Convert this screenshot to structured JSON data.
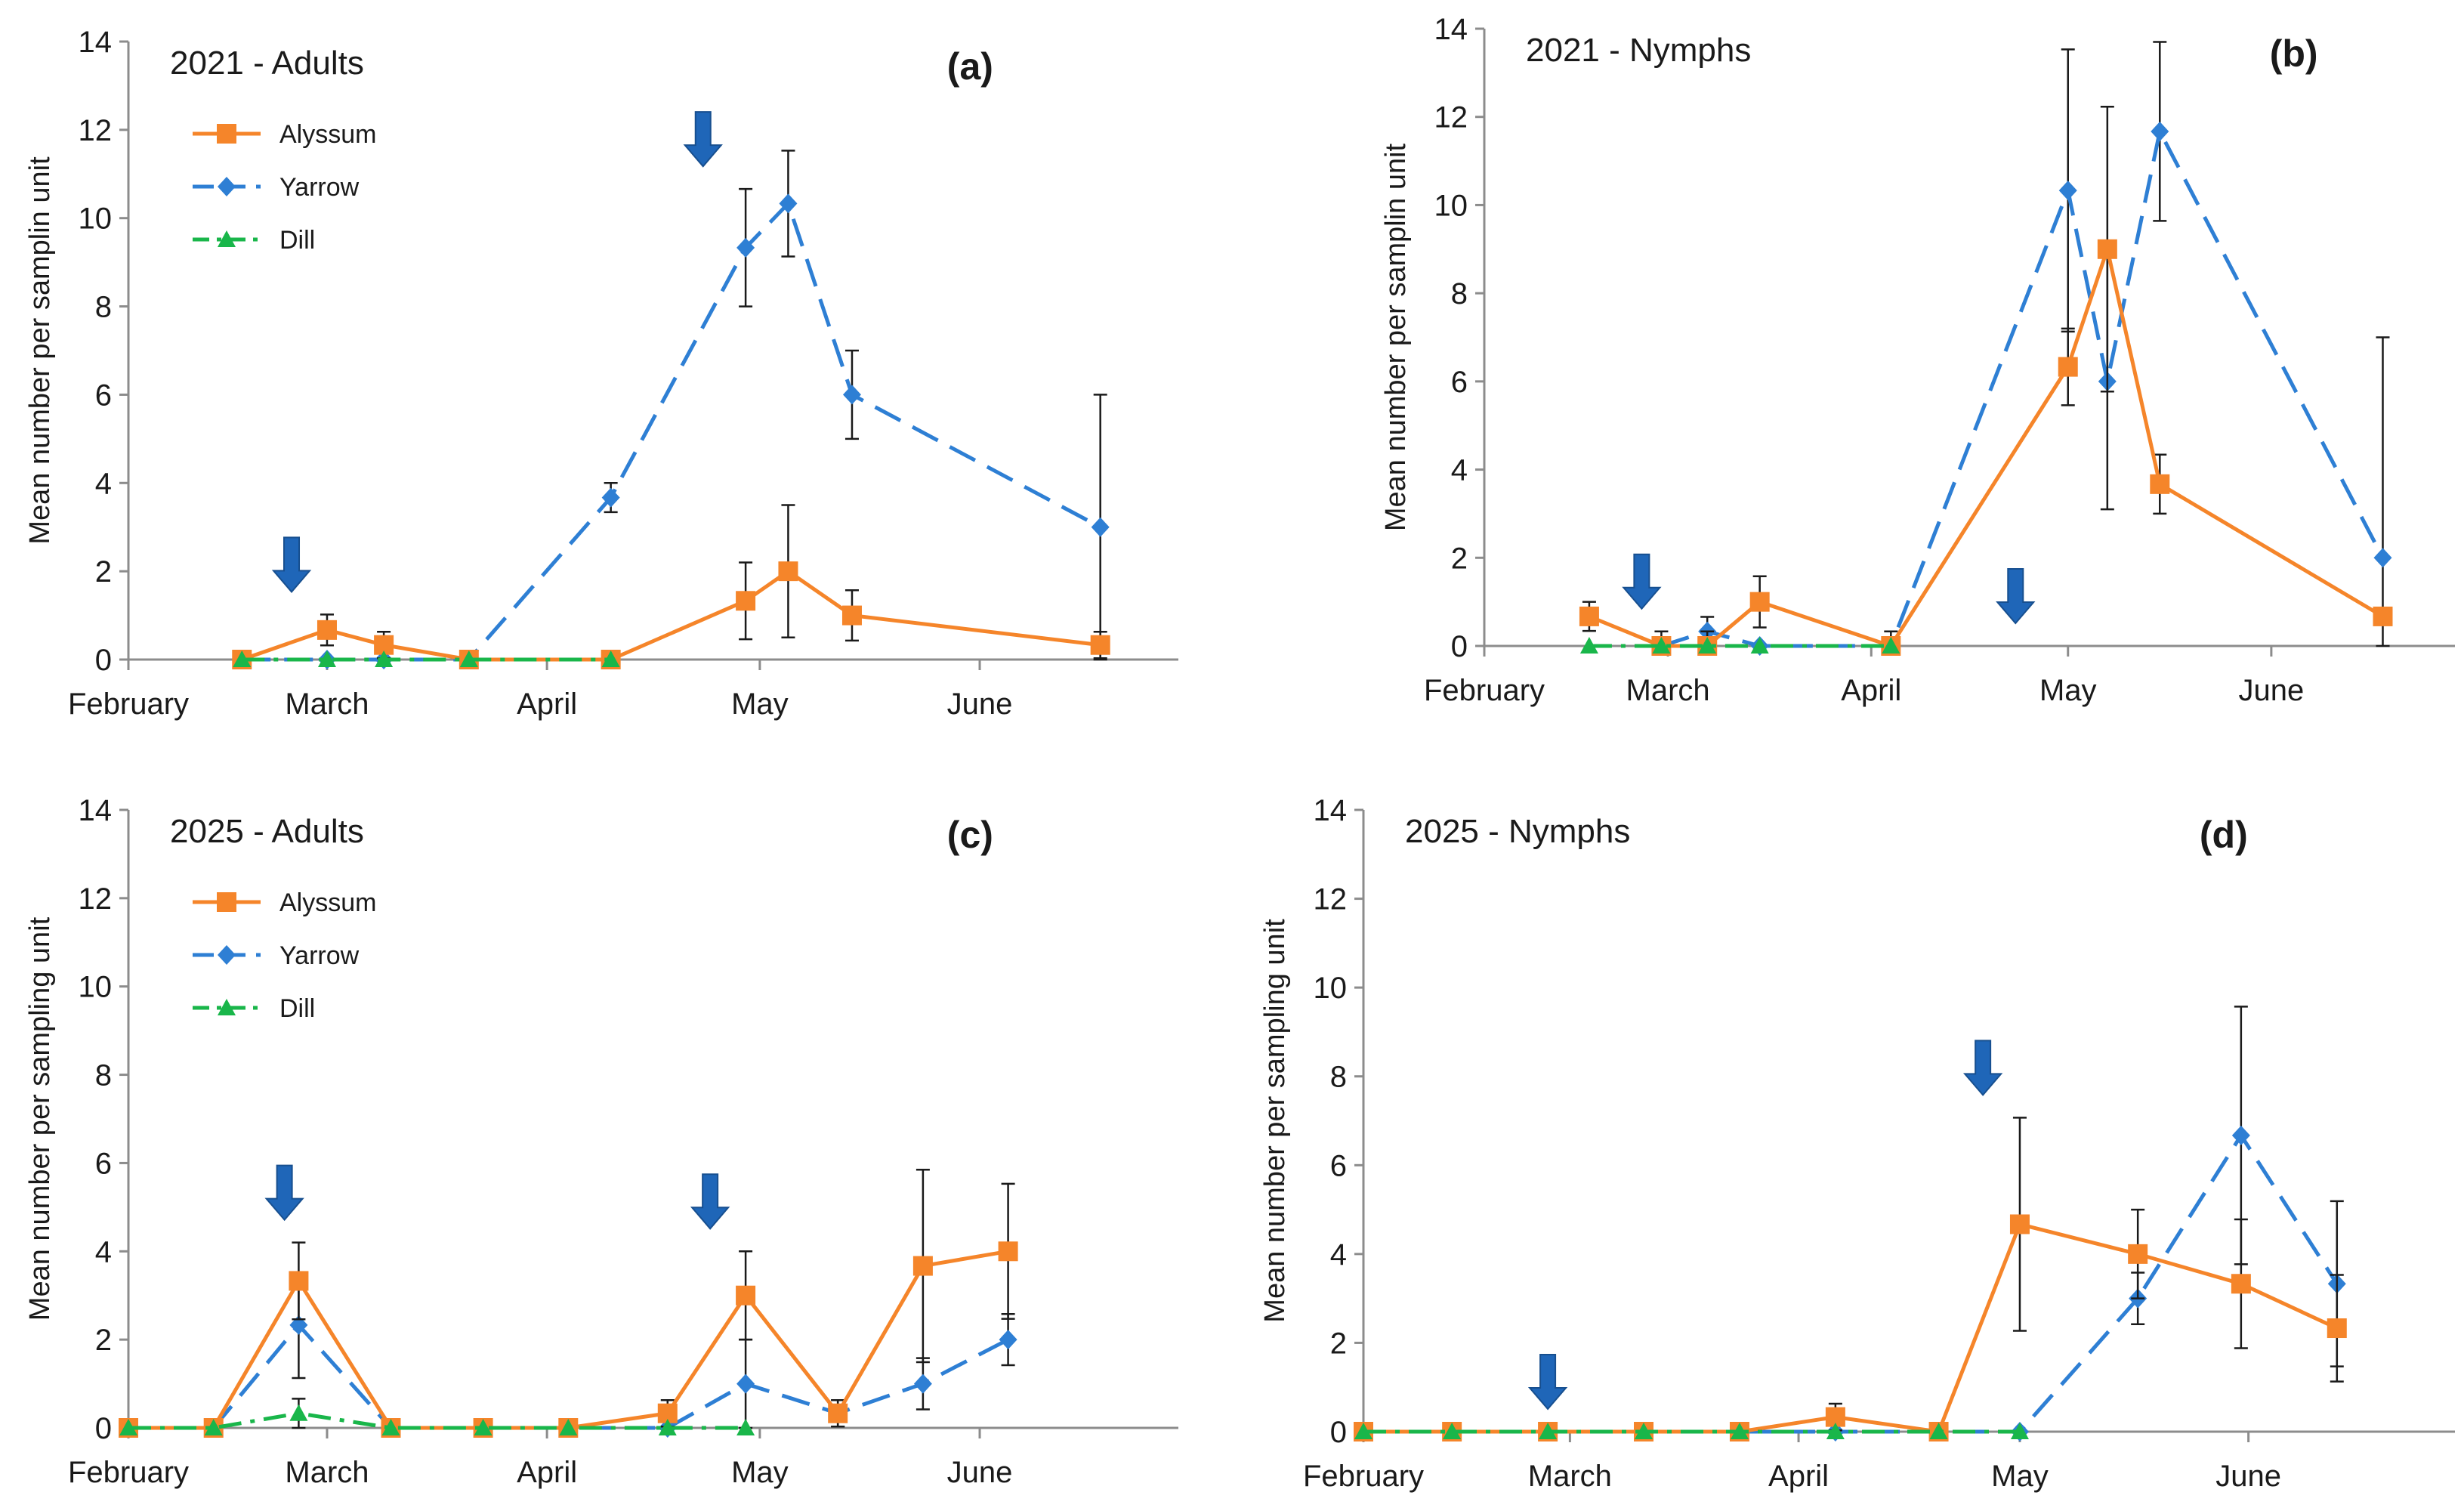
{
  "colors": {
    "Alyssum": "#f5852a",
    "Yarrow": "#2e7fd4",
    "Dill": "#19b64a",
    "arrow": "#1f66b8",
    "axis": "#8c8c8c",
    "errorbar": "#1a1a1a"
  },
  "chart_data": [
    {
      "type": "line",
      "panel_label": "(a)",
      "title": "2021 - Adults",
      "xlabel": "",
      "ylabel": "Mean number per samplin unit",
      "ylim": [
        0,
        14
      ],
      "yticks": [
        0,
        2,
        4,
        6,
        8,
        10,
        12,
        14
      ],
      "xlim": [
        0,
        148
      ],
      "xticks": [
        {
          "label": "February",
          "x": 0
        },
        {
          "label": "March",
          "x": 28
        },
        {
          "label": "April",
          "x": 59
        },
        {
          "label": "May",
          "x": 89
        },
        {
          "label": "June",
          "x": 120
        }
      ],
      "grid": false,
      "legend": {
        "placement": "top-left",
        "entries": [
          "Alyssum",
          "Yarrow",
          "Dill"
        ]
      },
      "arrows_at_x": [
        23,
        81
      ],
      "series": [
        {
          "name": "Alyssum",
          "marker": "square",
          "dash": "solid",
          "points": [
            [
              16,
              0,
              null
            ],
            [
              28,
              0.67,
              0.35
            ],
            [
              36,
              0.33,
              0.3
            ],
            [
              48,
              0,
              null
            ],
            [
              68,
              0,
              null
            ],
            [
              87,
              1.33,
              0.87
            ],
            [
              93,
              2.0,
              1.5
            ],
            [
              102,
              1.0,
              0.57
            ],
            [
              137,
              0.33,
              0.3
            ]
          ]
        },
        {
          "name": "Yarrow",
          "marker": "diamond",
          "dash": "dashed",
          "points": [
            [
              16,
              0,
              null
            ],
            [
              28,
              0,
              null
            ],
            [
              36,
              0,
              null
            ],
            [
              48,
              0,
              null
            ],
            [
              68,
              3.67,
              0.33
            ],
            [
              87,
              9.33,
              1.33
            ],
            [
              93,
              10.33,
              1.2
            ],
            [
              102,
              6.0,
              1.0
            ],
            [
              137,
              3.0,
              3.0
            ]
          ]
        },
        {
          "name": "Dill",
          "marker": "triangle",
          "dash": "dashdot",
          "points": [
            [
              16,
              0,
              null
            ],
            [
              28,
              0,
              null
            ],
            [
              36,
              0,
              null
            ],
            [
              48,
              0,
              null
            ],
            [
              68,
              0,
              null
            ]
          ]
        }
      ]
    },
    {
      "type": "line",
      "panel_label": "(b)",
      "title": "2021 - Nymphs",
      "xlabel": "",
      "ylabel": "Mean number per samplin unit",
      "ylim": [
        0,
        14
      ],
      "yticks": [
        0,
        2,
        4,
        6,
        8,
        10,
        12,
        14
      ],
      "xlim": [
        0,
        148
      ],
      "xticks": [
        {
          "label": "February",
          "x": 0
        },
        {
          "label": "March",
          "x": 28
        },
        {
          "label": "April",
          "x": 59
        },
        {
          "label": "May",
          "x": 89
        },
        {
          "label": "June",
          "x": 120
        }
      ],
      "grid": false,
      "legend": null,
      "arrows_at_x": [
        24,
        81
      ],
      "series": [
        {
          "name": "Alyssum",
          "marker": "square",
          "dash": "solid",
          "points": [
            [
              16,
              0.67,
              0.33
            ],
            [
              27,
              0,
              0.33
            ],
            [
              34,
              0,
              0.33
            ],
            [
              42,
              1.0,
              0.58
            ],
            [
              62,
              0,
              0.33
            ],
            [
              89,
              6.33,
              0.87
            ],
            [
              95,
              9.0,
              3.23
            ],
            [
              103,
              3.67,
              0.67
            ],
            [
              137,
              0.67,
              null
            ]
          ]
        },
        {
          "name": "Yarrow",
          "marker": "diamond",
          "dash": "dashed",
          "points": [
            [
              27,
              0,
              null
            ],
            [
              34,
              0.33,
              0.33
            ],
            [
              42,
              0,
              null
            ],
            [
              62,
              0,
              null
            ],
            [
              89,
              10.33,
              3.2
            ],
            [
              95,
              6.0,
              2.9
            ],
            [
              103,
              11.67,
              2.03
            ],
            [
              137,
              2.0,
              5.0
            ]
          ]
        },
        {
          "name": "Dill",
          "marker": "triangle",
          "dash": "dashdot",
          "points": [
            [
              16,
              0,
              null
            ],
            [
              27,
              0,
              null
            ],
            [
              34,
              0,
              null
            ],
            [
              42,
              0,
              null
            ],
            [
              62,
              0,
              null
            ]
          ]
        }
      ]
    },
    {
      "type": "line",
      "panel_label": "(c)",
      "title": "2025 - Adults",
      "xlabel": "",
      "ylabel": "Mean number per sampling unit",
      "ylim": [
        0,
        14
      ],
      "yticks": [
        0,
        2,
        4,
        6,
        8,
        10,
        12,
        14
      ],
      "xlim": [
        0,
        148
      ],
      "xticks": [
        {
          "label": "February",
          "x": 0
        },
        {
          "label": "March",
          "x": 28
        },
        {
          "label": "April",
          "x": 59
        },
        {
          "label": "May",
          "x": 89
        },
        {
          "label": "June",
          "x": 120
        }
      ],
      "grid": false,
      "legend": {
        "placement": "top-left",
        "entries": [
          "Alyssum",
          "Yarrow",
          "Dill"
        ]
      },
      "arrows_at_x": [
        22,
        82
      ],
      "series": [
        {
          "name": "Alyssum",
          "marker": "square",
          "dash": "solid",
          "points": [
            [
              0,
              0,
              null
            ],
            [
              12,
              0,
              null
            ],
            [
              24,
              3.33,
              0.87
            ],
            [
              37,
              0,
              null
            ],
            [
              50,
              0,
              null
            ],
            [
              62,
              0,
              null
            ],
            [
              76,
              0.33,
              0.3
            ],
            [
              87,
              3.0,
              1.0
            ],
            [
              100,
              0.33,
              0.3
            ],
            [
              112,
              3.67,
              2.18
            ],
            [
              124,
              4.0,
              1.53
            ]
          ]
        },
        {
          "name": "Yarrow",
          "marker": "diamond",
          "dash": "dashed",
          "points": [
            [
              0,
              0,
              null
            ],
            [
              12,
              0,
              null
            ],
            [
              24,
              2.33,
              1.2
            ],
            [
              37,
              0,
              null
            ],
            [
              50,
              0,
              null
            ],
            [
              62,
              0,
              null
            ],
            [
              76,
              0,
              null
            ],
            [
              87,
              1.0,
              1.0
            ],
            [
              100,
              0.33,
              0.3
            ],
            [
              112,
              1.0,
              0.58
            ],
            [
              124,
              2.0,
              0.58
            ]
          ]
        },
        {
          "name": "Dill",
          "marker": "triangle",
          "dash": "dashdot",
          "points": [
            [
              0,
              0,
              null
            ],
            [
              12,
              0,
              null
            ],
            [
              24,
              0.33,
              0.33
            ],
            [
              37,
              0,
              null
            ],
            [
              50,
              0,
              null
            ],
            [
              62,
              0,
              null
            ],
            [
              76,
              0,
              null
            ],
            [
              87,
              0,
              null
            ]
          ]
        }
      ]
    },
    {
      "type": "line",
      "panel_label": "(d)",
      "title": "2025 - Nymphs",
      "xlabel": "",
      "ylabel": "Mean number per sampling unit",
      "ylim": [
        0,
        14
      ],
      "yticks": [
        0,
        2,
        4,
        6,
        8,
        10,
        12,
        14
      ],
      "xlim": [
        0,
        148
      ],
      "xticks": [
        {
          "label": "February",
          "x": 0
        },
        {
          "label": "March",
          "x": 28
        },
        {
          "label": "April",
          "x": 59
        },
        {
          "label": "May",
          "x": 89
        },
        {
          "label": "June",
          "x": 120
        }
      ],
      "grid": false,
      "legend": null,
      "arrows_at_x": [
        25,
        84
      ],
      "series": [
        {
          "name": "Alyssum",
          "marker": "square",
          "dash": "solid",
          "points": [
            [
              0,
              0,
              null
            ],
            [
              12,
              0,
              null
            ],
            [
              25,
              0,
              null
            ],
            [
              38,
              0,
              null
            ],
            [
              51,
              0,
              null
            ],
            [
              64,
              0.33,
              0.3
            ],
            [
              78,
              0,
              null
            ],
            [
              89,
              4.67,
              2.4
            ],
            [
              105,
              4.0,
              1.0
            ],
            [
              119,
              3.33,
              1.45
            ],
            [
              132,
              2.33,
              1.2
            ]
          ]
        },
        {
          "name": "Yarrow",
          "marker": "diamond",
          "dash": "dashed",
          "points": [
            [
              0,
              0,
              null
            ],
            [
              12,
              0,
              null
            ],
            [
              25,
              0,
              null
            ],
            [
              38,
              0,
              null
            ],
            [
              51,
              0,
              null
            ],
            [
              64,
              0,
              null
            ],
            [
              78,
              0,
              null
            ],
            [
              89,
              0,
              null
            ],
            [
              105,
              3.0,
              0.58
            ],
            [
              119,
              6.67,
              2.9
            ],
            [
              132,
              3.33,
              1.86
            ]
          ]
        },
        {
          "name": "Dill",
          "marker": "triangle",
          "dash": "dashdot",
          "points": [
            [
              0,
              0,
              null
            ],
            [
              12,
              0,
              null
            ],
            [
              25,
              0,
              null
            ],
            [
              38,
              0,
              null
            ],
            [
              51,
              0,
              null
            ],
            [
              64,
              0,
              null
            ],
            [
              78,
              0,
              null
            ],
            [
              89,
              0,
              null
            ]
          ]
        }
      ]
    }
  ]
}
